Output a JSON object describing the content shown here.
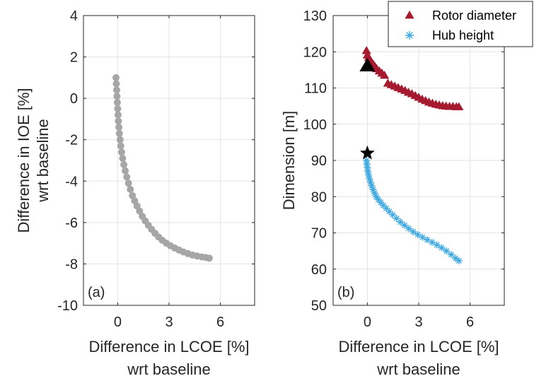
{
  "chart_data": [
    {
      "type": "scatter",
      "panel_label": "(a)",
      "xlabel": [
        "Difference in LCOE [%]",
        "wrt baseline"
      ],
      "ylabel": [
        "Difference in IOE [%]",
        "wrt baseline"
      ],
      "xlim": [
        -2,
        8
      ],
      "ylim": [
        -10,
        4
      ],
      "xticks": [
        0,
        3,
        6
      ],
      "yticks": [
        4,
        2,
        0,
        -2,
        -4,
        -6,
        -8,
        -10
      ],
      "grid": true,
      "marker": "circle",
      "color": "#a6a6a6",
      "series": [
        {
          "x": [
            -0.1,
            -0.08,
            -0.06,
            -0.04,
            -0.02,
            0.0,
            0.02,
            0.04,
            0.07,
            0.1,
            0.14,
            0.18,
            0.23,
            0.29,
            0.36,
            0.44,
            0.53,
            0.63,
            0.74,
            0.86,
            0.99,
            1.13,
            1.28,
            1.44,
            1.61,
            1.79,
            1.98,
            2.18,
            2.39,
            2.61,
            2.84,
            3.08,
            3.33,
            3.58,
            3.84,
            4.1,
            4.37,
            4.64,
            4.91,
            5.16,
            5.35
          ],
          "y": [
            1.0,
            0.7,
            0.4,
            0.1,
            -0.2,
            -0.5,
            -0.8,
            -1.1,
            -1.4,
            -1.7,
            -2.0,
            -2.3,
            -2.6,
            -2.9,
            -3.2,
            -3.5,
            -3.8,
            -4.1,
            -4.4,
            -4.7,
            -4.95,
            -5.2,
            -5.45,
            -5.7,
            -5.92,
            -6.13,
            -6.33,
            -6.52,
            -6.7,
            -6.86,
            -7.0,
            -7.12,
            -7.23,
            -7.33,
            -7.42,
            -7.5,
            -7.57,
            -7.62,
            -7.66,
            -7.69,
            -7.72
          ]
        }
      ]
    },
    {
      "type": "scatter",
      "panel_label": "(b)",
      "xlabel": [
        "Difference in LCOE [%]",
        "wrt baseline"
      ],
      "ylabel": [
        "Dimension [m]"
      ],
      "xlim": [
        -2,
        8
      ],
      "ylim": [
        50,
        130
      ],
      "xticks": [
        0,
        3,
        6
      ],
      "yticks": [
        130,
        120,
        110,
        100,
        90,
        80,
        70,
        60,
        50
      ],
      "grid": true,
      "legend": "top-right",
      "series": [
        {
          "name": "Rotor diameter",
          "marker": "triangle",
          "color": "#a51a2e",
          "x": [
            -0.05,
            0.0,
            0.08,
            0.15,
            0.25,
            0.35,
            0.45,
            0.55,
            0.7,
            0.85,
            1.0,
            1.2,
            1.4,
            1.6,
            1.8,
            2.0,
            2.2,
            2.4,
            2.6,
            2.8,
            3.0,
            3.2,
            3.4,
            3.6,
            3.8,
            4.0,
            4.2,
            4.4,
            4.6,
            4.8,
            5.0,
            5.2,
            5.35
          ],
          "y": [
            120.2,
            119.0,
            118.3,
            117.6,
            117.0,
            116.4,
            115.8,
            115.2,
            114.6,
            114.0,
            113.4,
            111.2,
            110.8,
            110.4,
            110.0,
            109.6,
            109.2,
            108.7,
            108.3,
            107.8,
            107.3,
            106.8,
            106.4,
            106.0,
            105.7,
            105.4,
            105.2,
            105.0,
            104.9,
            104.8,
            104.8,
            104.7,
            104.7
          ]
        },
        {
          "name": "Hub height",
          "marker": "asterisk",
          "color": "#3fa9e0",
          "x": [
            -0.05,
            -0.03,
            0.0,
            0.03,
            0.07,
            0.12,
            0.18,
            0.25,
            0.33,
            0.42,
            0.52,
            0.64,
            0.78,
            0.93,
            1.1,
            1.28,
            1.48,
            1.7,
            1.93,
            2.17,
            2.42,
            2.68,
            2.95,
            3.22,
            3.5,
            3.78,
            4.06,
            4.34,
            4.62,
            4.9,
            5.15,
            5.35
          ],
          "y": [
            90.0,
            89.0,
            88.0,
            87.0,
            86.0,
            85.0,
            84.0,
            83.0,
            82.0,
            81.0,
            80.0,
            79.2,
            78.4,
            77.6,
            76.8,
            75.9,
            75.0,
            74.0,
            73.0,
            72.1,
            71.2,
            70.3,
            69.5,
            68.8,
            68.1,
            67.4,
            66.7,
            65.9,
            65.0,
            64.0,
            63.0,
            62.3
          ]
        },
        {
          "name": "",
          "marker": "triangle",
          "color": "#000000",
          "x": [
            0.0
          ],
          "y": [
            116.0
          ]
        },
        {
          "name": "",
          "marker": "star",
          "color": "#000000",
          "x": [
            0.0
          ],
          "y": [
            92.0
          ]
        }
      ]
    }
  ]
}
